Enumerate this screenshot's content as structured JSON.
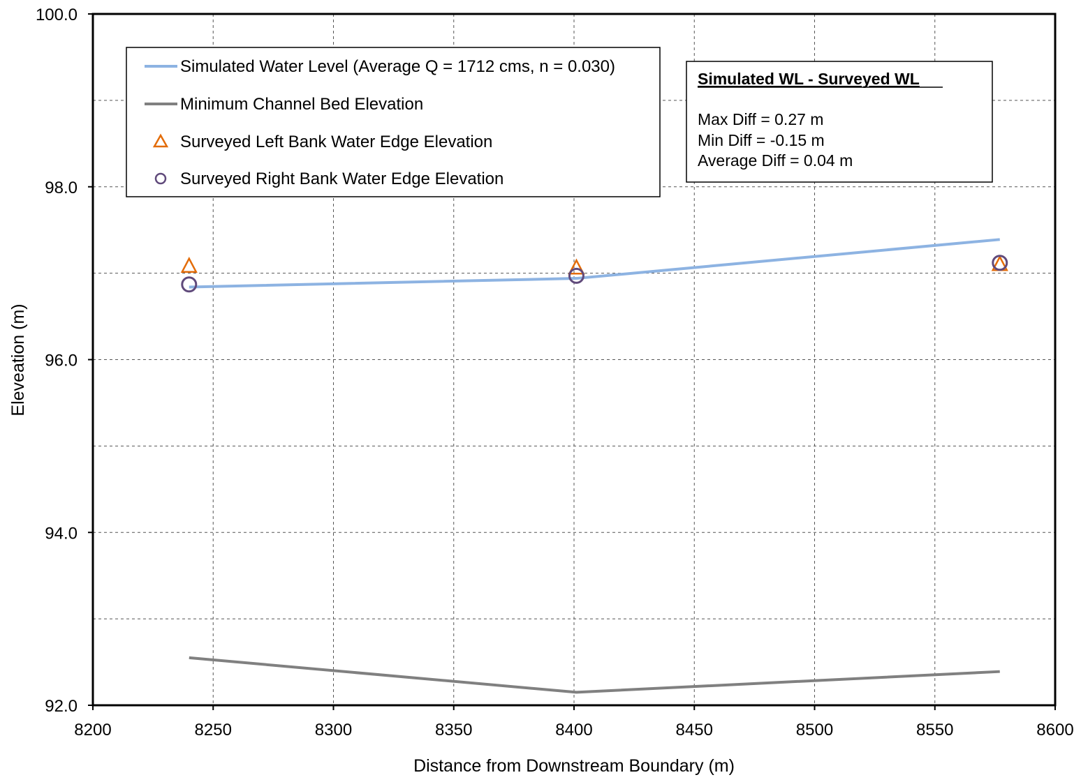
{
  "chart_data": {
    "type": "line",
    "xlabel": "Distance from Downstream Boundary (m)",
    "ylabel": "Eleveation (m)",
    "xlim": [
      8200,
      8600
    ],
    "ylim": [
      92,
      100
    ],
    "x_ticks": [
      8200,
      8250,
      8300,
      8350,
      8400,
      8450,
      8500,
      8550,
      8600
    ],
    "x_tick_labels": [
      "8200",
      "8250",
      "8300",
      "8350",
      "8400",
      "8450",
      "8500",
      "8550",
      "8600"
    ],
    "y_ticks": [
      92,
      94,
      96,
      98,
      100
    ],
    "y_tick_labels": [
      "92.0",
      "94.0",
      "96.0",
      "98.0",
      "100.0"
    ],
    "y_grid": [
      93,
      95,
      97,
      99
    ],
    "grid": true,
    "legend_position": "top-left",
    "series": [
      {
        "name": "Simulated Water Level (Average Q = 1712 cms, n = 0.030)",
        "kind": "line",
        "color": "#8db3e2",
        "x": [
          8240,
          8401,
          8577
        ],
        "y": [
          96.84,
          96.94,
          97.39
        ]
      },
      {
        "name": "Minimum Channel Bed Elevation",
        "kind": "line",
        "color": "#808080",
        "x": [
          8240,
          8401,
          8577
        ],
        "y": [
          92.55,
          92.15,
          92.39
        ]
      },
      {
        "name": "Surveyed Left Bank Water Edge Elevation",
        "kind": "marker",
        "marker": "triangle",
        "color": "#e36c09",
        "x": [
          8240,
          8401,
          8577
        ],
        "y": [
          97.08,
          97.06,
          97.1
        ]
      },
      {
        "name": "Surveyed Right Bank Water Edge Elevation",
        "kind": "marker",
        "marker": "circle",
        "color": "#604a7b",
        "x": [
          8240,
          8401,
          8577
        ],
        "y": [
          96.87,
          96.97,
          97.12
        ]
      }
    ],
    "annotation": {
      "title": "Simulated WL - Surveyed WL",
      "lines": [
        "Max Diff = 0.27 m",
        "Min Diff = -0.15 m",
        "Average Diff = 0.04 m"
      ]
    }
  }
}
